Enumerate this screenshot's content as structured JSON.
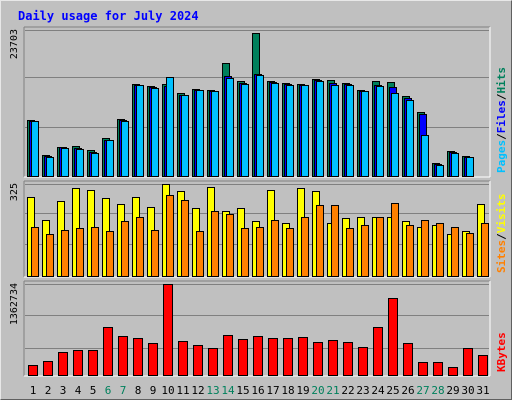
{
  "title": "Daily usage for July 2024",
  "colors": {
    "title": "#0000ff",
    "hits": "#00805c",
    "files": "#0000ff",
    "pages": "#00c0ff",
    "visits": "#ffff00",
    "sites": "#ff8000",
    "kbytes": "#ff0000",
    "weekend_day": "#00805c",
    "weekday": "#000000"
  },
  "chart_data": [
    {
      "type": "bar",
      "name": "hits-files-pages",
      "max_label": "23703",
      "ylim": [
        0,
        23703
      ],
      "legend": [
        "Pages",
        "/",
        "Files",
        "/",
        "Hits"
      ],
      "categories": [
        "1",
        "2",
        "3",
        "4",
        "5",
        "6",
        "7",
        "8",
        "9",
        "10",
        "11",
        "12",
        "13",
        "14",
        "15",
        "16",
        "17",
        "18",
        "19",
        "20",
        "21",
        "22",
        "23",
        "24",
        "25",
        "26",
        "27",
        "28",
        "29",
        "30",
        "31"
      ],
      "series": [
        {
          "name": "Hits",
          "values": [
            9200,
            3500,
            4900,
            5000,
            4400,
            6300,
            9400,
            15000,
            14600,
            15000,
            13500,
            14200,
            14000,
            18400,
            15400,
            23200,
            15500,
            15200,
            15000,
            15800,
            15600,
            15200,
            14000,
            15400,
            15300,
            13000,
            10500,
            2200,
            4200,
            3400,
            0
          ]
        },
        {
          "name": "Files",
          "values": [
            9100,
            3400,
            4800,
            4600,
            4000,
            6000,
            9200,
            14900,
            14500,
            14600,
            13300,
            14100,
            13900,
            16300,
            15100,
            16600,
            15300,
            15000,
            14900,
            15600,
            15200,
            15000,
            13900,
            14800,
            14500,
            12800,
            10100,
            2100,
            4100,
            3300,
            0
          ]
        },
        {
          "name": "Pages",
          "values": [
            9000,
            3300,
            4700,
            4500,
            3900,
            5900,
            9100,
            14800,
            14400,
            16100,
            13200,
            14000,
            13800,
            15900,
            15000,
            16400,
            15200,
            14900,
            14800,
            15500,
            14800,
            14900,
            13800,
            14600,
            13500,
            12400,
            6800,
            2000,
            3900,
            3200,
            0
          ]
        }
      ]
    },
    {
      "type": "bar",
      "name": "visits-sites",
      "max_label": "325",
      "ylim": [
        0,
        325
      ],
      "legend": [
        "Sites",
        "/",
        "Visits"
      ],
      "categories": [
        "1",
        "2",
        "3",
        "4",
        "5",
        "6",
        "7",
        "8",
        "9",
        "10",
        "11",
        "12",
        "13",
        "14",
        "15",
        "16",
        "17",
        "18",
        "19",
        "20",
        "21",
        "22",
        "23",
        "24",
        "25",
        "26",
        "27",
        "28",
        "29",
        "30",
        "31"
      ],
      "series": [
        {
          "name": "Visits",
          "values": [
            280,
            200,
            265,
            310,
            305,
            275,
            255,
            280,
            245,
            325,
            300,
            240,
            315,
            230,
            240,
            195,
            305,
            190,
            310,
            300,
            190,
            205,
            210,
            210,
            210,
            195,
            175,
            180,
            150,
            160,
            255
          ]
        },
        {
          "name": "Sites",
          "values": [
            175,
            150,
            165,
            170,
            175,
            160,
            195,
            210,
            165,
            285,
            270,
            160,
            230,
            220,
            170,
            175,
            200,
            170,
            210,
            250,
            250,
            170,
            180,
            210,
            260,
            180,
            200,
            190,
            175,
            155,
            190
          ]
        }
      ]
    },
    {
      "type": "bar",
      "name": "kbytes",
      "max_label": "1362734",
      "ylim": [
        0,
        1362734
      ],
      "legend": [
        "KBytes"
      ],
      "categories": [
        "1",
        "2",
        "3",
        "4",
        "5",
        "6",
        "7",
        "8",
        "9",
        "10",
        "11",
        "12",
        "13",
        "14",
        "15",
        "16",
        "17",
        "18",
        "19",
        "20",
        "21",
        "22",
        "23",
        "24",
        "25",
        "26",
        "27",
        "28",
        "29",
        "30",
        "31"
      ],
      "series": [
        {
          "name": "KBytes",
          "values": [
            170000,
            220000,
            360000,
            390000,
            390000,
            720000,
            590000,
            560000,
            490000,
            1362734,
            520000,
            460000,
            420000,
            610000,
            550000,
            590000,
            560000,
            560000,
            580000,
            510000,
            540000,
            510000,
            430000,
            730000,
            1150000,
            490000,
            200000,
            200000,
            130000,
            410000,
            310000
          ]
        }
      ]
    }
  ],
  "days": [
    {
      "label": "1",
      "weekend": false
    },
    {
      "label": "2",
      "weekend": false
    },
    {
      "label": "3",
      "weekend": false
    },
    {
      "label": "4",
      "weekend": false
    },
    {
      "label": "5",
      "weekend": false
    },
    {
      "label": "6",
      "weekend": true
    },
    {
      "label": "7",
      "weekend": true
    },
    {
      "label": "8",
      "weekend": false
    },
    {
      "label": "9",
      "weekend": false
    },
    {
      "label": "10",
      "weekend": false
    },
    {
      "label": "11",
      "weekend": false
    },
    {
      "label": "12",
      "weekend": false
    },
    {
      "label": "13",
      "weekend": true
    },
    {
      "label": "14",
      "weekend": true
    },
    {
      "label": "15",
      "weekend": false
    },
    {
      "label": "16",
      "weekend": false
    },
    {
      "label": "17",
      "weekend": false
    },
    {
      "label": "18",
      "weekend": false
    },
    {
      "label": "19",
      "weekend": false
    },
    {
      "label": "20",
      "weekend": true
    },
    {
      "label": "21",
      "weekend": true
    },
    {
      "label": "22",
      "weekend": false
    },
    {
      "label": "23",
      "weekend": false
    },
    {
      "label": "24",
      "weekend": false
    },
    {
      "label": "25",
      "weekend": false
    },
    {
      "label": "26",
      "weekend": false
    },
    {
      "label": "27",
      "weekend": true
    },
    {
      "label": "28",
      "weekend": true
    },
    {
      "label": "29",
      "weekend": false
    },
    {
      "label": "30",
      "weekend": false
    },
    {
      "label": "31",
      "weekend": false
    }
  ]
}
